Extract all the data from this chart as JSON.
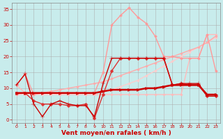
{
  "background_color": "#c8ecec",
  "grid_color": "#aaaaaa",
  "xlabel": "Vent moyen/en rafales ( km/h )",
  "xlabel_color": "#cc0000",
  "xlabel_fontsize": 6.5,
  "ylabel_ticks": [
    0,
    5,
    10,
    15,
    20,
    25,
    30,
    35
  ],
  "xticks": [
    0,
    1,
    2,
    3,
    4,
    5,
    6,
    7,
    8,
    9,
    10,
    11,
    12,
    13,
    14,
    15,
    16,
    17,
    18,
    19,
    20,
    21,
    22,
    23
  ],
  "xlim": [
    -0.5,
    23.5
  ],
  "ylim": [
    -1.0,
    37
  ],
  "series": [
    {
      "x": [
        0,
        1,
        2,
        3,
        4,
        5,
        6,
        7,
        8,
        9,
        10,
        11,
        12,
        13,
        14,
        15,
        16,
        17,
        18,
        19,
        20,
        21,
        22,
        23
      ],
      "y": [
        8.5,
        8.5,
        8.5,
        8.5,
        8.5,
        8.5,
        8.5,
        8.5,
        8.5,
        8.5,
        9.0,
        9.5,
        9.5,
        9.5,
        9.5,
        10.0,
        10.0,
        10.5,
        11.0,
        11.0,
        11.0,
        11.0,
        8.0,
        8.0
      ],
      "color": "#cc0000",
      "linewidth": 1.8,
      "marker": ">",
      "markersize": 3.0,
      "zorder": 10
    },
    {
      "x": [
        0,
        1,
        2,
        3,
        4,
        5,
        6,
        7,
        8,
        9,
        10,
        11,
        12,
        13,
        14,
        15,
        16,
        17,
        18,
        19,
        20,
        21,
        22,
        23
      ],
      "y": [
        11.0,
        14.5,
        5.0,
        1.0,
        5.0,
        6.0,
        5.0,
        4.5,
        4.5,
        1.0,
        11.5,
        19.5,
        19.5,
        19.5,
        19.5,
        19.5,
        19.5,
        19.5,
        11.0,
        11.5,
        11.5,
        11.5,
        7.5,
        7.5
      ],
      "color": "#cc0000",
      "linewidth": 1.0,
      "marker": "+",
      "markersize": 4.0,
      "zorder": 9
    },
    {
      "x": [
        0,
        1,
        2,
        3,
        4,
        5,
        6,
        7,
        8,
        9,
        10,
        11,
        12,
        13,
        14,
        15,
        16,
        17,
        18,
        19,
        20,
        21,
        22,
        23
      ],
      "y": [
        8.5,
        8.5,
        6.0,
        5.0,
        5.0,
        5.0,
        4.5,
        4.5,
        5.0,
        0.5,
        8.0,
        15.5,
        19.5,
        19.5,
        19.5,
        19.5,
        19.5,
        19.5,
        11.0,
        11.5,
        11.0,
        11.0,
        7.5,
        7.5
      ],
      "color": "#dd3333",
      "linewidth": 1.0,
      "marker": "D",
      "markersize": 2.5,
      "zorder": 8
    },
    {
      "x": [
        0,
        1,
        2,
        3,
        4,
        5,
        6,
        7,
        8,
        9,
        10,
        11,
        12,
        13,
        14,
        15,
        16,
        17,
        18,
        19,
        20,
        21,
        22,
        23
      ],
      "y": [
        11.0,
        14.5,
        8.0,
        8.5,
        8.5,
        8.5,
        8.5,
        8.5,
        8.5,
        8.5,
        15.0,
        30.0,
        33.0,
        35.5,
        32.5,
        30.5,
        26.5,
        20.0,
        20.0,
        19.5,
        19.5,
        19.5,
        27.0,
        15.5
      ],
      "color": "#ff9999",
      "linewidth": 1.0,
      "marker": "D",
      "markersize": 2.0,
      "zorder": 5
    },
    {
      "x": [
        0,
        1,
        2,
        3,
        4,
        5,
        6,
        7,
        8,
        9,
        10,
        11,
        12,
        13,
        14,
        15,
        16,
        17,
        18,
        19,
        20,
        21,
        22,
        23
      ],
      "y": [
        8.0,
        8.5,
        8.5,
        8.5,
        9.0,
        9.5,
        10.0,
        10.5,
        11.0,
        11.5,
        12.0,
        13.0,
        14.0,
        15.0,
        16.0,
        17.0,
        18.0,
        19.0,
        20.0,
        21.0,
        22.0,
        23.0,
        24.5,
        26.5
      ],
      "color": "#ffaaaa",
      "linewidth": 1.0,
      "marker": "D",
      "markersize": 1.8,
      "zorder": 4
    },
    {
      "x": [
        0,
        1,
        2,
        3,
        4,
        5,
        6,
        7,
        8,
        9,
        10,
        11,
        12,
        13,
        14,
        15,
        16,
        17,
        18,
        19,
        20,
        21,
        22,
        23
      ],
      "y": [
        11.0,
        8.5,
        8.0,
        8.5,
        8.5,
        8.0,
        8.0,
        8.0,
        8.0,
        8.0,
        8.0,
        8.0,
        8.0,
        8.0,
        8.0,
        8.0,
        8.0,
        8.0,
        8.0,
        8.0,
        19.5,
        19.5,
        27.0,
        27.0
      ],
      "color": "#ffbbbb",
      "linewidth": 1.0,
      "marker": "D",
      "markersize": 1.8,
      "zorder": 3
    },
    {
      "x": [
        0,
        1,
        2,
        3,
        4,
        5,
        6,
        7,
        8,
        9,
        10,
        11,
        12,
        13,
        14,
        15,
        16,
        17,
        18,
        19,
        20,
        21,
        22,
        23
      ],
      "y": [
        8.0,
        8.0,
        8.0,
        8.0,
        8.0,
        8.0,
        8.5,
        8.5,
        8.5,
        8.5,
        9.0,
        9.5,
        10.5,
        11.5,
        12.5,
        14.0,
        15.5,
        17.0,
        18.5,
        20.0,
        21.5,
        23.0,
        24.5,
        26.0
      ],
      "color": "#ffcccc",
      "linewidth": 1.0,
      "marker": "D",
      "markersize": 1.8,
      "zorder": 2
    }
  ]
}
